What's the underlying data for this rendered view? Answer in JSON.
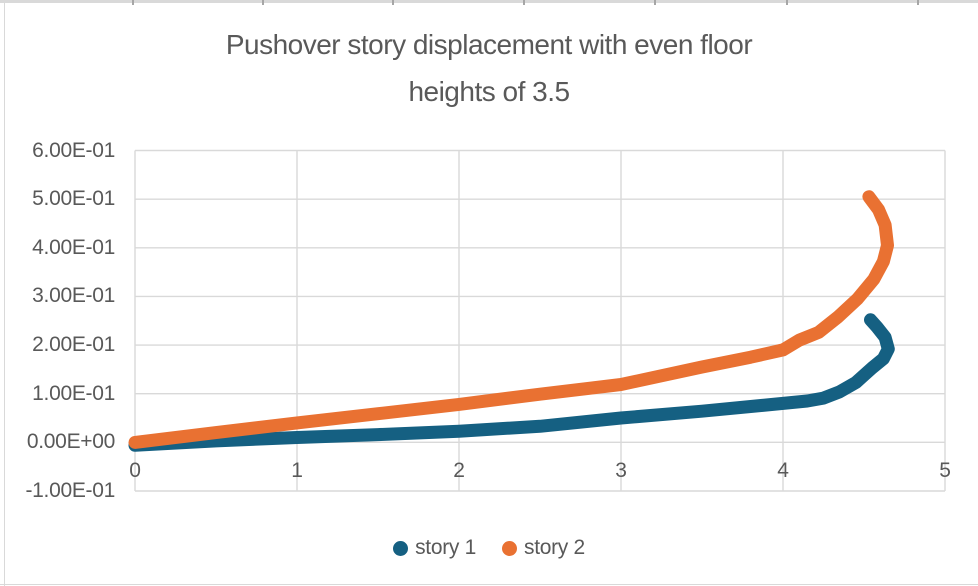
{
  "chart_data": {
    "type": "line",
    "title": "Pushover story displacement with even floor heights of 3.5",
    "title_lines": [
      "Pushover story displacement with even floor",
      "heights of 3.5"
    ],
    "xlabel": "",
    "ylabel": "",
    "xlim": [
      0,
      5
    ],
    "ylim": [
      -0.1,
      0.6
    ],
    "grid": true,
    "legend_position": "bottom",
    "text_color": "#595959",
    "gridline_color": "#d9d9d9",
    "background_color": "#ffffff",
    "x_ticks": [
      {
        "value": 0,
        "label": "0"
      },
      {
        "value": 1,
        "label": "1"
      },
      {
        "value": 2,
        "label": "2"
      },
      {
        "value": 3,
        "label": "3"
      },
      {
        "value": 4,
        "label": "4"
      },
      {
        "value": 5,
        "label": "5"
      }
    ],
    "y_ticks": [
      {
        "value": 0.6,
        "label": "6.00E-01"
      },
      {
        "value": 0.5,
        "label": "5.00E-01"
      },
      {
        "value": 0.4,
        "label": "4.00E-01"
      },
      {
        "value": 0.3,
        "label": "3.00E-01"
      },
      {
        "value": 0.2,
        "label": "2.00E-01"
      },
      {
        "value": 0.1,
        "label": "1.00E-01"
      },
      {
        "value": 0.0,
        "label": "0.00E+00"
      },
      {
        "value": -0.1,
        "label": "-1.00E-01"
      }
    ],
    "series": [
      {
        "name": "story 1",
        "color": "#156082",
        "line_width": 13,
        "points": [
          [
            0,
            -0.006
          ],
          [
            0.5,
            0.003
          ],
          [
            1,
            0.01
          ],
          [
            1.5,
            0.016
          ],
          [
            2,
            0.023
          ],
          [
            2.5,
            0.033
          ],
          [
            3,
            0.05
          ],
          [
            3.5,
            0.064
          ],
          [
            4,
            0.08
          ],
          [
            4.15,
            0.085
          ],
          [
            4.25,
            0.091
          ],
          [
            4.35,
            0.104
          ],
          [
            4.45,
            0.123
          ],
          [
            4.55,
            0.153
          ],
          [
            4.62,
            0.172
          ],
          [
            4.65,
            0.192
          ],
          [
            4.63,
            0.216
          ],
          [
            4.58,
            0.237
          ],
          [
            4.54,
            0.252
          ]
        ]
      },
      {
        "name": "story 2",
        "color": "#E97132",
        "line_width": 13,
        "points": [
          [
            0,
            0.0
          ],
          [
            0.5,
            0.02
          ],
          [
            1,
            0.04
          ],
          [
            1.5,
            0.059
          ],
          [
            2,
            0.078
          ],
          [
            2.5,
            0.099
          ],
          [
            3,
            0.119
          ],
          [
            3.5,
            0.155
          ],
          [
            3.8,
            0.175
          ],
          [
            4,
            0.19
          ],
          [
            4.1,
            0.21
          ],
          [
            4.22,
            0.226
          ],
          [
            4.34,
            0.258
          ],
          [
            4.46,
            0.295
          ],
          [
            4.56,
            0.335
          ],
          [
            4.62,
            0.372
          ],
          [
            4.645,
            0.405
          ],
          [
            4.63,
            0.447
          ],
          [
            4.59,
            0.478
          ],
          [
            4.53,
            0.505
          ]
        ]
      }
    ]
  }
}
